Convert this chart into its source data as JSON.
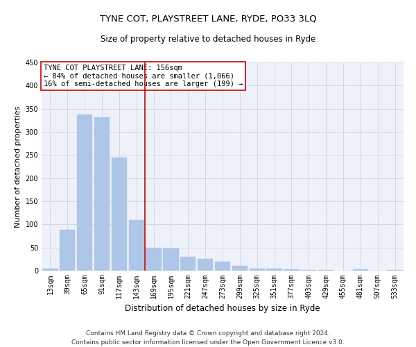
{
  "title": "TYNE COT, PLAYSTREET LANE, RYDE, PO33 3LQ",
  "subtitle": "Size of property relative to detached houses in Ryde",
  "xlabel": "Distribution of detached houses by size in Ryde",
  "ylabel": "Number of detached properties",
  "categories": [
    "13sqm",
    "39sqm",
    "65sqm",
    "91sqm",
    "117sqm",
    "143sqm",
    "169sqm",
    "195sqm",
    "221sqm",
    "247sqm",
    "273sqm",
    "299sqm",
    "325sqm",
    "351sqm",
    "377sqm",
    "403sqm",
    "429sqm",
    "455sqm",
    "481sqm",
    "507sqm",
    "533sqm"
  ],
  "values": [
    5,
    88,
    338,
    332,
    245,
    110,
    49,
    48,
    30,
    25,
    20,
    10,
    5,
    4,
    3,
    2,
    1,
    0,
    3,
    0,
    2
  ],
  "bar_color": "#aec6e8",
  "bar_edge_color": "#aec6e8",
  "grid_color": "#d0d8e8",
  "background_color": "#eef2f8",
  "vline_x_index": 5.5,
  "vline_color": "#cc0000",
  "annotation_text": "TYNE COT PLAYSTREET LANE: 156sqm\n← 84% of detached houses are smaller (1,066)\n16% of semi-detached houses are larger (199) →",
  "annotation_box_color": "#ffffff",
  "annotation_box_edge": "#cc0000",
  "ylim": [
    0,
    450
  ],
  "yticks": [
    0,
    50,
    100,
    150,
    200,
    250,
    300,
    350,
    400,
    450
  ],
  "footnote": "Contains HM Land Registry data © Crown copyright and database right 2024.\nContains public sector information licensed under the Open Government Licence v3.0.",
  "title_fontsize": 9.5,
  "subtitle_fontsize": 8.5,
  "xlabel_fontsize": 8.5,
  "ylabel_fontsize": 8,
  "tick_fontsize": 7,
  "annotation_fontsize": 7.5,
  "footnote_fontsize": 6.5
}
